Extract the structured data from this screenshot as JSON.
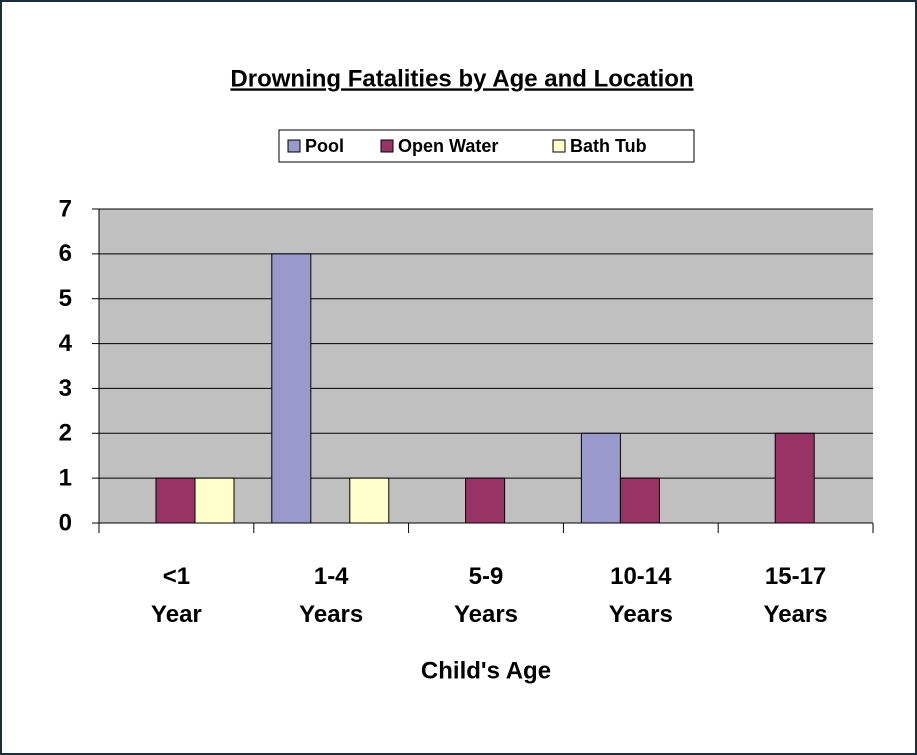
{
  "chart_data": {
    "type": "bar",
    "title": "Drowning Fatalities by Age and Location",
    "x_label": "Child's Age",
    "categories": [
      "<1 Year",
      "1-4 Years",
      "5-9 Years",
      "10-14 Years",
      "15-17 Years"
    ],
    "series": [
      {
        "name": "Pool",
        "color": "#9999cc",
        "values": [
          0,
          6,
          0,
          2,
          0
        ]
      },
      {
        "name": "Open Water",
        "color": "#993366",
        "values": [
          1,
          0,
          1,
          1,
          2
        ]
      },
      {
        "name": "Bath Tub",
        "color": "#ffffcc",
        "values": [
          1,
          1,
          0,
          0,
          0
        ]
      }
    ],
    "ylim": [
      0,
      7
    ],
    "yticks": [
      0,
      1,
      2,
      3,
      4,
      5,
      6,
      7
    ],
    "grid": true,
    "legend": "top"
  }
}
